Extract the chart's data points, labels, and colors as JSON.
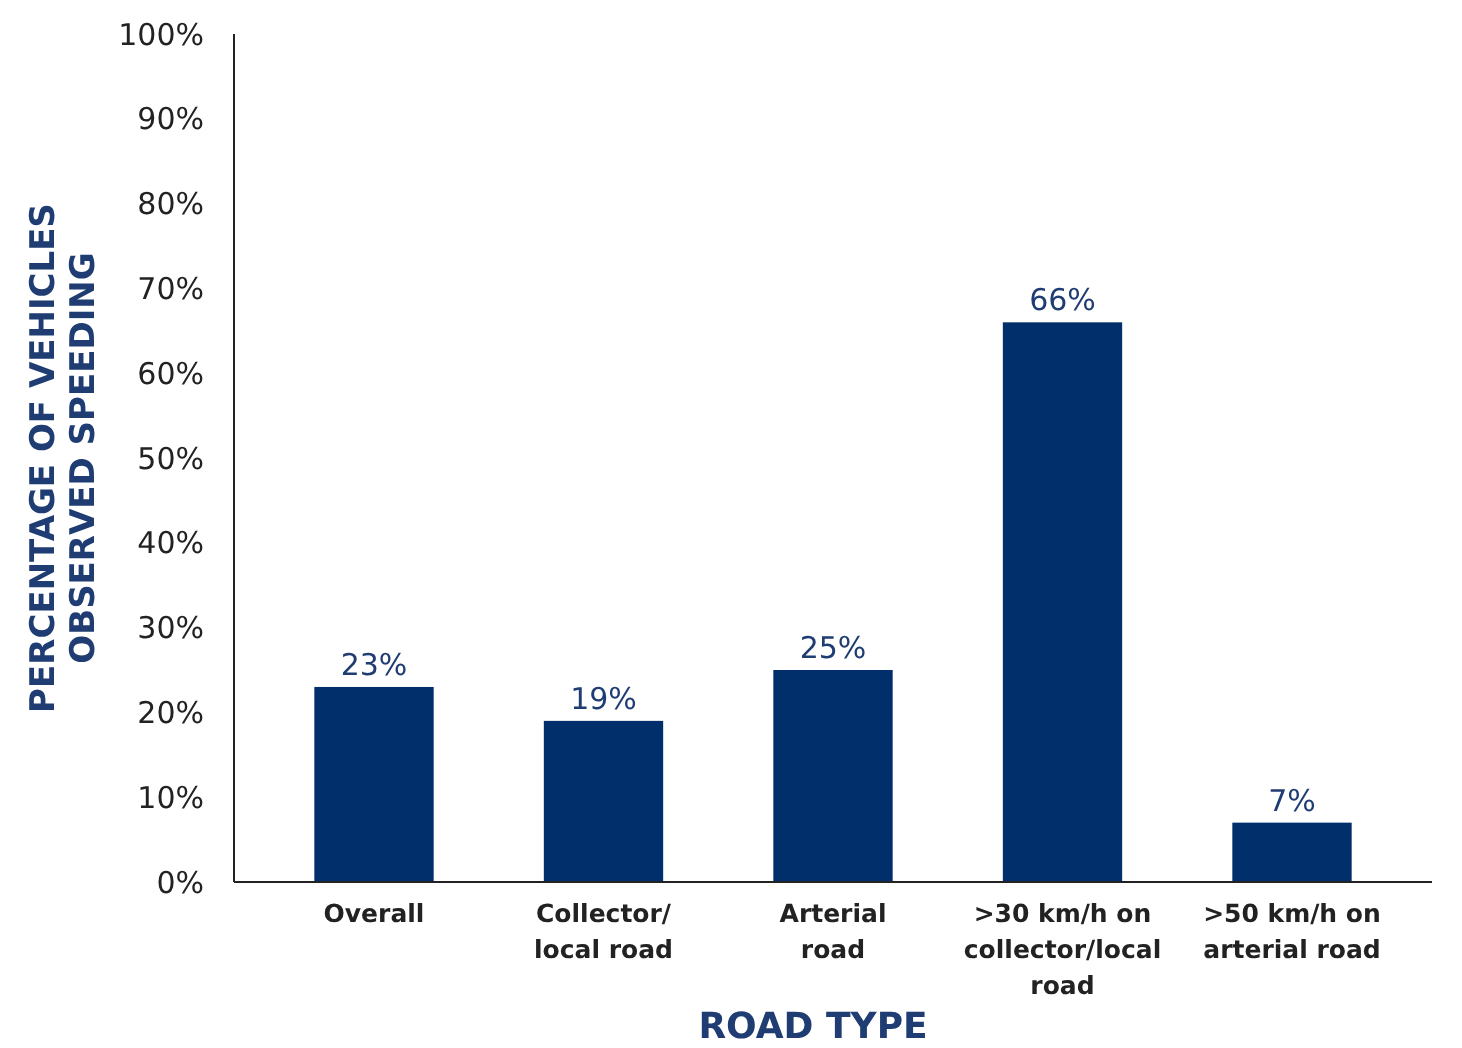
{
  "chart_data": {
    "type": "bar",
    "xlabel": "ROAD TYPE",
    "ylabel": "PERCENTAGE OF VEHICLES\nOBSERVED SPEEDING",
    "categories": [
      "Overall",
      "Collector/\nlocal road",
      "Arterial\nroad",
      ">30 km/h on\ncollector/local\nroad",
      ">50 km/h on\narterial road"
    ],
    "values": [
      23,
      19,
      25,
      66,
      7
    ],
    "value_labels": [
      "23%",
      "19%",
      "25%",
      "66%",
      "7%"
    ],
    "color": "#002f6c",
    "grid": false,
    "ylim": [
      0,
      100
    ],
    "yticks": [
      {
        "value": 0,
        "label": "0%"
      },
      {
        "value": 10,
        "label": "10%"
      },
      {
        "value": 20,
        "label": "20%"
      },
      {
        "value": 30,
        "label": "30%"
      },
      {
        "value": 40,
        "label": "40%"
      },
      {
        "value": 50,
        "label": "50%"
      },
      {
        "value": 60,
        "label": "60%"
      },
      {
        "value": 70,
        "label": "70%"
      },
      {
        "value": 80,
        "label": "80%"
      },
      {
        "value": 90,
        "label": "90%"
      },
      {
        "value": 100,
        "label": "100%"
      }
    ]
  }
}
